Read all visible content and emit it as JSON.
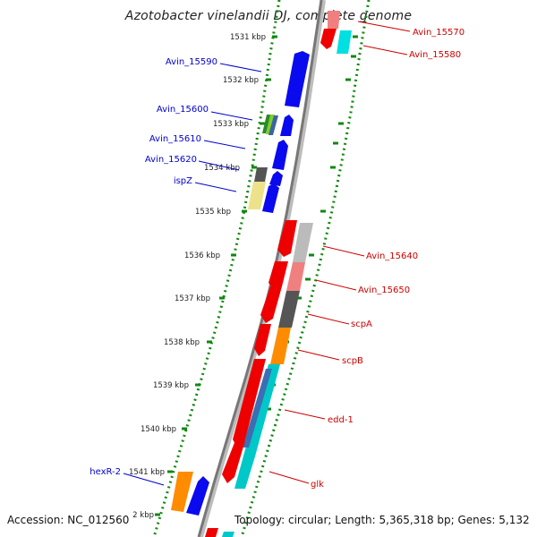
{
  "title": "Azotobacter vinelandii DJ, complete genome",
  "footer": {
    "accession": "Accession: NC_012560",
    "topology": "Topology: circular; Length: 5,365,318 bp; Genes: 5,132"
  },
  "colors": {
    "forward": "#0000ee",
    "reverse": "#ee0000",
    "cyan": "#00d8d8",
    "orange": "#ff8c00",
    "grey": "#555555",
    "light_grey": "#bbbbbb",
    "pink": "#f08080",
    "khaki": "#ece28a",
    "green_ruler": "#118811",
    "label_left": "#0000cc",
    "label_right": "#cc0000"
  },
  "ruler_ticks": [
    "1531 kbp",
    "1532 kbp",
    "1533 kbp",
    "1534 kbp",
    "1535 kbp",
    "1536 kbp",
    "1537 kbp",
    "1538 kbp",
    "1539 kbp",
    "1540 kbp",
    "1541 kbp",
    "2 kbp"
  ],
  "labels_left": [
    "Avin_15590",
    "Avin_15600",
    "Avin_15610",
    "Avin_15620",
    "ispZ",
    "hexR-2"
  ],
  "labels_right": [
    "Avin_15570",
    "Avin_15580",
    "Avin_15640",
    "Avin_15650",
    "scpA",
    "scpB",
    "edd-1",
    "glk"
  ]
}
